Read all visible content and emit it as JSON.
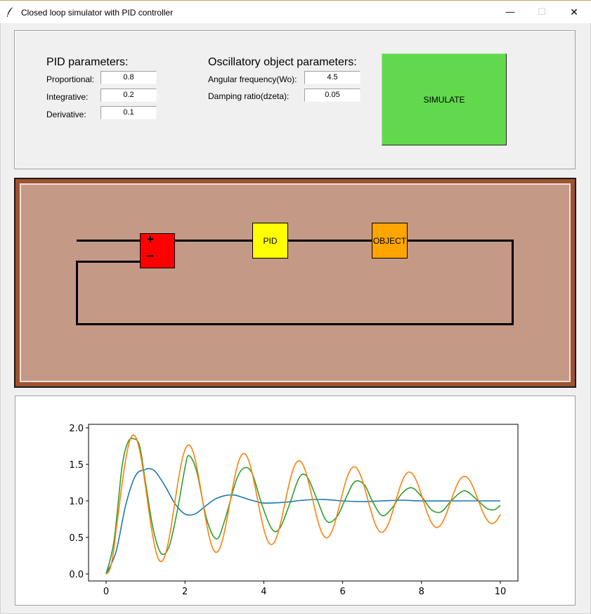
{
  "window": {
    "title": "Closed loop simulator with PID controller",
    "minimize": "—",
    "maximize": "☐",
    "close": "✕"
  },
  "pid": {
    "header": "PID parameters:",
    "proportional_label": "Proportional:",
    "proportional_value": "0.8",
    "integrative_label": "Integrative:",
    "integrative_value": "0.2",
    "derivative_label": "Derivative:",
    "derivative_value": "0.1"
  },
  "object": {
    "header": "Oscillatory object parameters:",
    "wo_label": "Angular frequency(Wo):",
    "wo_value": "4.5",
    "dzeta_label": "Damping ratio(dzeta):",
    "dzeta_value": "0.05"
  },
  "simulate_label": "SIMULATE",
  "diagram": {
    "plus": "+",
    "minus": "−",
    "pid_label": "PID",
    "object_label": "OBJECT",
    "colors": {
      "summer": "#ff0000",
      "pid": "#ffff00",
      "object": "#ffa500",
      "frame": "#a0522d",
      "canvas": "#c49a87"
    }
  },
  "chart_data": {
    "type": "line",
    "xlim": [
      0,
      10
    ],
    "ylim": [
      0,
      2
    ],
    "xticks": [
      "0",
      "2",
      "4",
      "6",
      "8",
      "10"
    ],
    "yticks": [
      "0.0",
      "0.5",
      "1.0",
      "1.5",
      "2.0"
    ],
    "grid": false,
    "series": [
      {
        "color": "#1f77b4",
        "x": [
          0,
          0.25,
          0.5,
          0.75,
          1.0,
          1.1,
          1.25,
          1.5,
          1.75,
          2.0,
          2.25,
          2.5,
          2.75,
          3.0,
          3.25,
          3.5,
          3.75,
          4.0,
          4.5,
          5.0,
          5.5,
          6.0,
          6.5,
          7.0,
          7.5,
          8.0,
          9.0,
          10.0
        ],
        "y": [
          0,
          0.3,
          0.95,
          1.35,
          1.43,
          1.44,
          1.4,
          1.2,
          0.96,
          0.82,
          0.82,
          0.92,
          1.02,
          1.07,
          1.08,
          1.04,
          1.0,
          0.97,
          0.98,
          1.01,
          1.02,
          1.0,
          0.99,
          1.0,
          1.01,
          1.0,
          1.0,
          1.0
        ]
      },
      {
        "color": "#2ca02c",
        "x": [
          0,
          0.2,
          0.4,
          0.55,
          0.7,
          0.85,
          1.0,
          1.2,
          1.4,
          1.6,
          1.8,
          2.0,
          2.1,
          2.3,
          2.55,
          2.8,
          3.0,
          3.3,
          3.5,
          3.7,
          3.95,
          4.2,
          4.4,
          4.65,
          4.9,
          5.1,
          5.35,
          5.6,
          5.85,
          6.05,
          6.3,
          6.55,
          6.75,
          7.0,
          7.25,
          7.5,
          7.75,
          8.0,
          8.25,
          8.5,
          8.75,
          9.0,
          9.15,
          9.4,
          9.65,
          9.85,
          10.0
        ],
        "y": [
          0,
          0.45,
          1.45,
          1.8,
          1.85,
          1.75,
          1.25,
          0.6,
          0.28,
          0.38,
          0.85,
          1.45,
          1.62,
          1.4,
          0.75,
          0.48,
          0.72,
          1.28,
          1.45,
          1.38,
          0.95,
          0.62,
          0.62,
          0.95,
          1.32,
          1.33,
          1.02,
          0.72,
          0.78,
          1.0,
          1.26,
          1.22,
          1.0,
          0.8,
          0.9,
          1.1,
          1.18,
          1.06,
          0.88,
          0.85,
          1.0,
          1.12,
          1.13,
          1.02,
          0.9,
          0.88,
          0.94
        ]
      },
      {
        "color": "#ff7f0e",
        "amp": 0.98,
        "decay": 0.118,
        "freq": 4.49,
        "target": 1.0,
        "final_y": 0.69
      }
    ]
  }
}
